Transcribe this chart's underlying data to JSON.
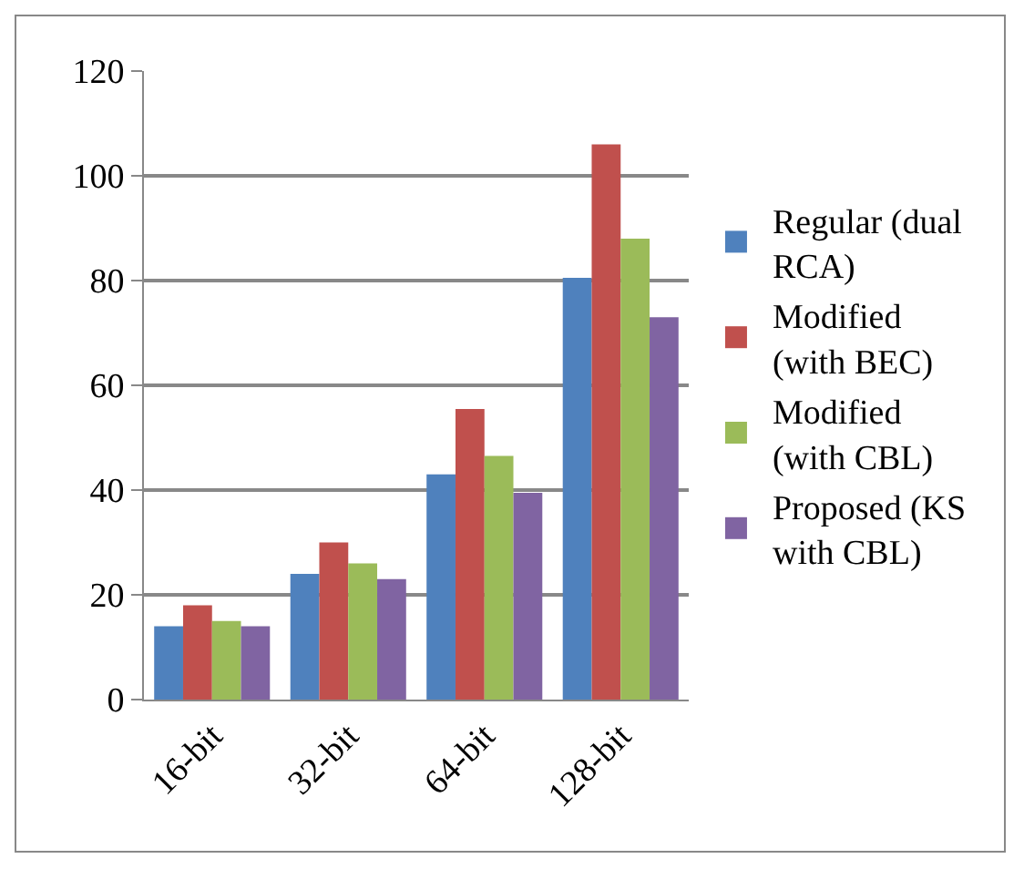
{
  "chart_data": {
    "type": "bar",
    "categories": [
      "16-bit",
      "32-bit",
      "64-bit",
      "128-bit"
    ],
    "series": [
      {
        "name": "Regular (dual RCA)",
        "color": "#4f81bd",
        "values": [
          14,
          24,
          43,
          80.5
        ]
      },
      {
        "name": "Modified (with BEC)",
        "color": "#c0504d",
        "values": [
          18,
          30,
          55.5,
          106
        ]
      },
      {
        "name": "Modified (with CBL)",
        "color": "#9bbb59",
        "values": [
          15,
          26,
          46.5,
          88
        ]
      },
      {
        "name": "Proposed (KS with CBL)",
        "color": "#8064a2",
        "values": [
          14,
          23,
          39.5,
          73
        ]
      }
    ],
    "ylim": [
      0,
      120
    ],
    "yticks": [
      0,
      20,
      40,
      60,
      80,
      100,
      120
    ],
    "grid": "y",
    "legend": "right"
  }
}
